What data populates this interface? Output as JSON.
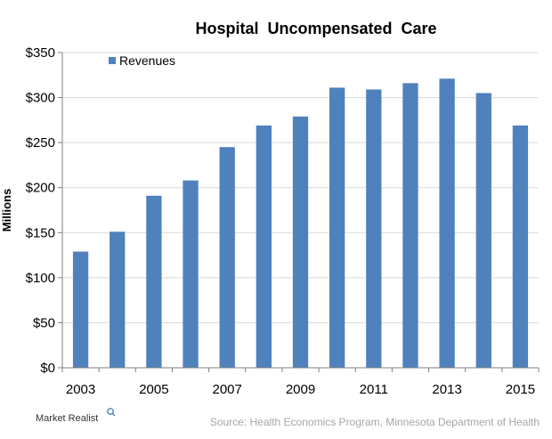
{
  "chart_data": {
    "type": "bar",
    "title": "Hospital  Uncompensated  Care",
    "ylabel": "Millions",
    "xlabel": "",
    "categories": [
      "2003",
      "2004",
      "2005",
      "2006",
      "2007",
      "2008",
      "2009",
      "2010",
      "2011",
      "2012",
      "2013",
      "2014",
      "2015"
    ],
    "x_tick_labels": [
      "2003",
      "2005",
      "2007",
      "2009",
      "2011",
      "2013",
      "2015"
    ],
    "series": [
      {
        "name": "Revenues",
        "values": [
          129,
          151,
          191,
          208,
          245,
          269,
          279,
          311,
          309,
          316,
          321,
          305,
          269
        ],
        "color": "#4f81bd"
      }
    ],
    "ylim": [
      0,
      350
    ],
    "y_ticks": [
      0,
      50,
      100,
      150,
      200,
      250,
      300,
      350
    ],
    "y_tick_labels": [
      "$0",
      "$50",
      "$100",
      "$150",
      "$200",
      "$250",
      "$300",
      "$350"
    ],
    "grid": true,
    "legend_position": "top-left"
  },
  "source": "Source: Health Economics Program, Minnesota Department of Health",
  "logo": {
    "text": "Market Realist",
    "icon": "magnifier-icon"
  }
}
